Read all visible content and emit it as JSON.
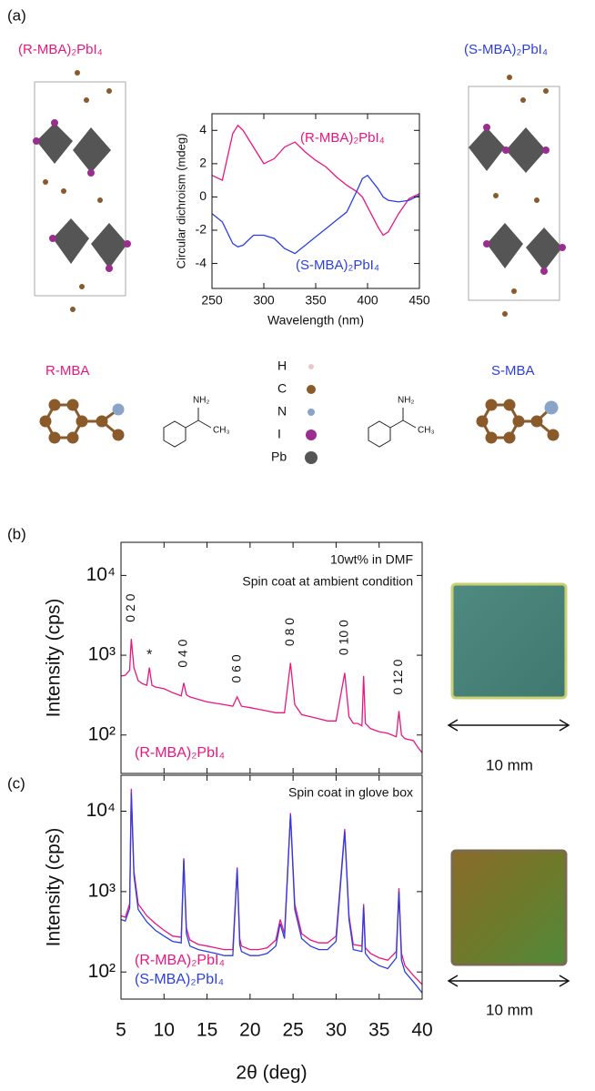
{
  "panel_labels": [
    "(a)",
    "(b)",
    "(c)"
  ],
  "structures": {
    "left": "(R-MBA)₂PbI₄",
    "right": "(S-MBA)₂PbI₄"
  },
  "molecules": {
    "left": "R-MBA",
    "right": "S-MBA",
    "amine": "NH₂",
    "methyl": "CH₃"
  },
  "atom_legend": [
    "H",
    "C",
    "N",
    "I",
    "Pb"
  ],
  "scale_bar": "10 mm",
  "chart_data": [
    {
      "type": "line",
      "xlabel": "Wavelength (nm)",
      "ylabel": "Circular dichroism (mdeg)",
      "x": [
        250,
        260,
        270,
        275,
        280,
        290,
        300,
        310,
        320,
        330,
        340,
        350,
        360,
        370,
        380,
        390,
        395,
        400,
        410,
        415,
        420,
        430,
        440,
        450
      ],
      "series": [
        {
          "name": "(R-MBA)₂PbI₄",
          "color": "#e8177f",
          "values": [
            1.3,
            1.0,
            3.8,
            4.3,
            4.0,
            3.0,
            2.0,
            2.3,
            3.0,
            3.3,
            2.7,
            2.2,
            1.8,
            1.2,
            0.7,
            0.3,
            0.0,
            -0.6,
            -1.8,
            -2.3,
            -2.1,
            -1.0,
            -0.1,
            0.2
          ]
        },
        {
          "name": "(S-MBA)₂PbI₄",
          "color": "#2b3fe0",
          "values": [
            -1.0,
            -1.5,
            -2.8,
            -3.0,
            -2.9,
            -2.3,
            -2.3,
            -2.5,
            -3.1,
            -3.4,
            -2.9,
            -2.4,
            -1.9,
            -1.4,
            -0.9,
            0.4,
            1.1,
            1.3,
            0.5,
            0.0,
            -0.2,
            -0.3,
            -0.2,
            0.1
          ]
        }
      ],
      "xlim": [
        250,
        450
      ],
      "xticks": [
        250,
        300,
        350,
        400,
        450
      ],
      "ylim": [
        -5.5,
        5
      ],
      "yticks": [
        -4,
        -2,
        0,
        2,
        4
      ]
    },
    {
      "type": "line",
      "ylabel": "Intensity (cps)",
      "yscale": "log",
      "notes": [
        "10wt% in DMF",
        "Spin coat at ambient condition"
      ],
      "x": [
        5,
        5.5,
        6,
        6.2,
        6.5,
        7,
        7.5,
        8,
        8.3,
        8.6,
        9,
        10,
        11,
        12,
        12.3,
        12.6,
        13,
        14,
        15,
        16,
        17,
        18,
        18.5,
        19,
        20,
        21,
        22,
        23,
        24,
        24.7,
        25.2,
        26,
        27,
        28,
        29,
        30,
        31,
        31.5,
        32,
        32.5,
        33,
        33.2,
        33.4,
        34,
        35,
        36,
        37,
        37.3,
        37.6,
        38,
        39,
        39.5,
        40
      ],
      "series": [
        {
          "name": "(R-MBA)₂PbI₄",
          "color": "#e8177f",
          "values": [
            550,
            560,
            650,
            1600,
            700,
            480,
            440,
            420,
            700,
            420,
            400,
            380,
            340,
            310,
            450,
            320,
            300,
            280,
            260,
            250,
            240,
            230,
            300,
            230,
            220,
            210,
            200,
            190,
            190,
            800,
            240,
            180,
            170,
            160,
            150,
            150,
            600,
            170,
            140,
            140,
            130,
            550,
            140,
            120,
            110,
            105,
            95,
            200,
            100,
            90,
            85,
            70,
            60
          ]
        }
      ],
      "annotations": [
        {
          "text": "0 2 0",
          "x": 6.2,
          "y": 2600
        },
        {
          "text": "*",
          "x": 8.3,
          "y": 1000
        },
        {
          "text": "0 4 0",
          "x": 12.3,
          "y": 700
        },
        {
          "text": "0 6 0",
          "x": 18.5,
          "y": 450
        },
        {
          "text": "0 8 0",
          "x": 24.7,
          "y": 1300
        },
        {
          "text": "0 10 0",
          "x": 31,
          "y": 1000
        },
        {
          "text": "0 12 0",
          "x": 37.3,
          "y": 320
        }
      ],
      "xlim": [
        5,
        40
      ],
      "xticks": [
        5,
        10,
        15,
        20,
        25,
        30,
        35,
        40
      ],
      "ylim": [
        33,
        26000
      ],
      "yticks": [
        {
          "value": 100,
          "label": "10²"
        },
        {
          "value": 1000,
          "label": "10³"
        },
        {
          "value": 10000,
          "label": "10⁴"
        }
      ]
    },
    {
      "type": "line",
      "ylabel": "Intensity (cps)",
      "xlabel": "2θ (deg)",
      "yscale": "log",
      "notes": [
        "Spin coat in glove box"
      ],
      "x": [
        5,
        5.5,
        6,
        6.2,
        6.5,
        7,
        8,
        9,
        10,
        11,
        12,
        12.3,
        12.6,
        13,
        14,
        15,
        16,
        17,
        18,
        18.5,
        18.8,
        19,
        20,
        21,
        22,
        23,
        23.5,
        24,
        24.7,
        25.2,
        26,
        27,
        28,
        29,
        30,
        31,
        31.5,
        32,
        33,
        33.2,
        33.4,
        34,
        35,
        36,
        37,
        37.3,
        37.6,
        38,
        39,
        40
      ],
      "series": [
        {
          "name": "(R-MBA)₂PbI₄",
          "color": "#e8177f",
          "values": [
            500,
            480,
            700,
            19000,
            1800,
            700,
            500,
            400,
            330,
            280,
            270,
            2600,
            350,
            250,
            220,
            210,
            200,
            190,
            190,
            2000,
            260,
            210,
            190,
            190,
            200,
            250,
            450,
            300,
            9500,
            700,
            300,
            250,
            230,
            230,
            280,
            6000,
            500,
            220,
            210,
            700,
            200,
            170,
            150,
            140,
            180,
            1100,
            170,
            120,
            90,
            70
          ]
        },
        {
          "name": "(S-MBA)₂PbI₄",
          "color": "#2b3fe0",
          "values": [
            450,
            430,
            620,
            17000,
            1600,
            600,
            420,
            330,
            280,
            240,
            230,
            2500,
            300,
            210,
            190,
            180,
            170,
            160,
            160,
            1900,
            220,
            180,
            160,
            160,
            170,
            210,
            400,
            260,
            9000,
            600,
            260,
            210,
            190,
            190,
            240,
            5600,
            450,
            190,
            180,
            650,
            170,
            140,
            120,
            110,
            150,
            1000,
            140,
            100,
            75,
            55
          ]
        }
      ],
      "xlim": [
        5,
        40
      ],
      "xticks": [
        5,
        10,
        15,
        20,
        25,
        30,
        35,
        40
      ],
      "ylim": [
        46,
        28000
      ],
      "yticks": [
        {
          "value": 100,
          "label": "10²"
        },
        {
          "value": 1000,
          "label": "10³"
        },
        {
          "value": 10000,
          "label": "10⁴"
        }
      ]
    }
  ]
}
